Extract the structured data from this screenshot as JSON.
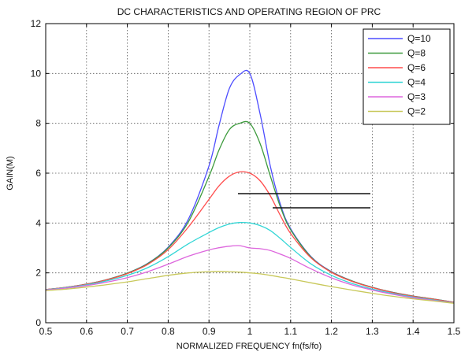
{
  "chart_data": {
    "type": "line",
    "title": "DC CHARACTERISTICS AND OPERATING REGION OF PRC",
    "xlabel": "NORMALIZED FREQUENCY fn(fs/fo)",
    "ylabel": "GAIN(M)",
    "xlim": [
      0.5,
      1.5
    ],
    "ylim": [
      0,
      12
    ],
    "xticks": [
      "0.5",
      "0.6",
      "0.7",
      "0.8",
      "0.9",
      "1",
      "1.1",
      "1.2",
      "1.3",
      "1.4",
      "1.5"
    ],
    "yticks": [
      "0",
      "2",
      "4",
      "6",
      "8",
      "10",
      "12"
    ],
    "grid": true,
    "grid_style": "dotted",
    "legend_position": "top-right",
    "x": [
      0.5,
      0.55,
      0.6,
      0.65,
      0.7,
      0.75,
      0.8,
      0.85,
      0.9,
      0.925,
      0.95,
      0.975,
      1.0,
      1.025,
      1.05,
      1.075,
      1.1,
      1.15,
      1.2,
      1.25,
      1.3,
      1.35,
      1.4,
      1.45,
      1.5
    ],
    "series": [
      {
        "name": "Q=10",
        "color": "#4d4dff",
        "values": [
          1.33,
          1.42,
          1.55,
          1.73,
          1.99,
          2.38,
          3.03,
          4.17,
          6.29,
          7.95,
          9.4,
          9.95,
          10.0,
          8.4,
          6.3,
          4.75,
          3.77,
          2.65,
          2.05,
          1.68,
          1.42,
          1.22,
          1.07,
          0.95,
          0.82
        ]
      },
      {
        "name": "Q=8",
        "color": "#3c9a3c",
        "values": [
          1.33,
          1.42,
          1.55,
          1.73,
          1.99,
          2.37,
          3.0,
          4.06,
          5.87,
          6.95,
          7.75,
          8.0,
          8.0,
          7.2,
          5.9,
          4.65,
          3.73,
          2.63,
          2.04,
          1.68,
          1.42,
          1.22,
          1.07,
          0.95,
          0.82
        ]
      },
      {
        "name": "Q=6",
        "color": "#ff4d4d",
        "values": [
          1.33,
          1.42,
          1.54,
          1.72,
          1.97,
          2.34,
          2.93,
          3.85,
          4.95,
          5.5,
          5.88,
          6.05,
          6.0,
          5.7,
          5.1,
          4.3,
          3.58,
          2.6,
          2.02,
          1.66,
          1.41,
          1.21,
          1.06,
          0.94,
          0.82
        ]
      },
      {
        "name": "Q=4",
        "color": "#33d6d6",
        "values": [
          1.32,
          1.41,
          1.52,
          1.68,
          1.9,
          2.21,
          2.65,
          3.17,
          3.62,
          3.82,
          3.96,
          4.02,
          4.0,
          3.9,
          3.7,
          3.38,
          3.02,
          2.36,
          1.9,
          1.58,
          1.35,
          1.17,
          1.03,
          0.91,
          0.8
        ]
      },
      {
        "name": "Q=3",
        "color": "#dd66dd",
        "values": [
          1.31,
          1.39,
          1.49,
          1.63,
          1.81,
          2.05,
          2.35,
          2.67,
          2.92,
          3.01,
          3.07,
          3.09,
          3.0,
          2.97,
          2.9,
          2.75,
          2.58,
          2.16,
          1.8,
          1.52,
          1.31,
          1.14,
          1.0,
          0.89,
          0.79
        ]
      },
      {
        "name": "Q=2",
        "color": "#c8c85a",
        "values": [
          1.29,
          1.35,
          1.43,
          1.53,
          1.64,
          1.77,
          1.9,
          2.0,
          2.05,
          2.06,
          2.05,
          2.03,
          2.0,
          1.96,
          1.9,
          1.83,
          1.76,
          1.6,
          1.45,
          1.31,
          1.18,
          1.06,
          0.96,
          0.87,
          0.78
        ]
      }
    ]
  }
}
